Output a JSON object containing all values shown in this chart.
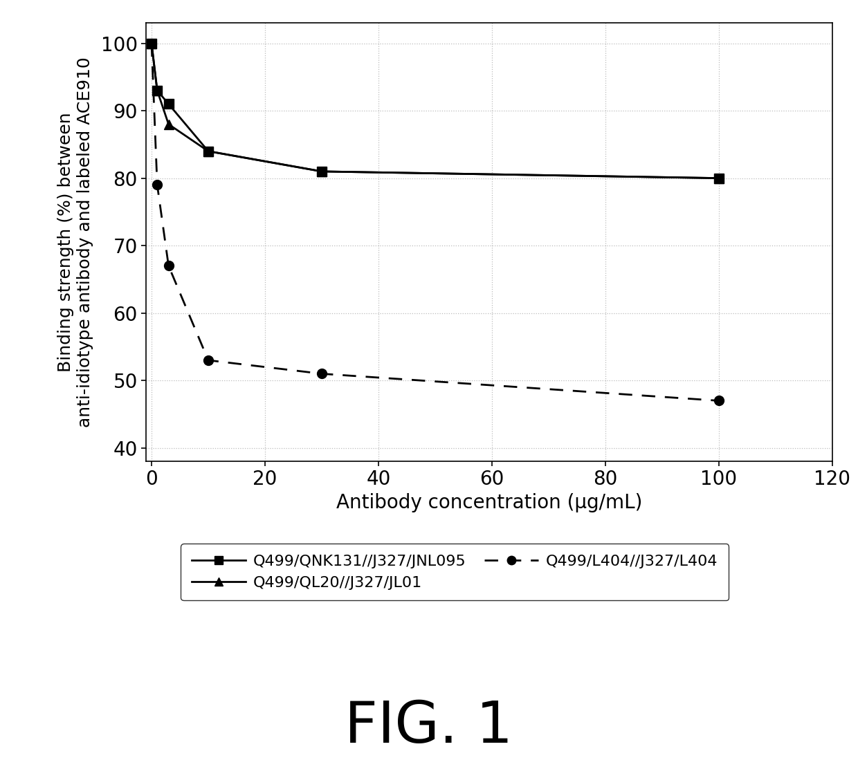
{
  "series": [
    {
      "label": "Q499/QNK131//J327/JNL095",
      "x": [
        0,
        1,
        3,
        10,
        30,
        100
      ],
      "y": [
        100,
        93,
        91,
        84,
        81,
        80
      ],
      "color": "#000000",
      "linestyle": "solid",
      "marker": "s"
    },
    {
      "label": "Q499/QL20//J327/JL01",
      "x": [
        0,
        1,
        3,
        10,
        30,
        100
      ],
      "y": [
        100,
        93,
        88,
        84,
        81,
        80
      ],
      "color": "#000000",
      "linestyle": "solid",
      "marker": "^"
    },
    {
      "label": "Q499/L404//J327/L404",
      "x": [
        0,
        1,
        3,
        10,
        30,
        100
      ],
      "y": [
        100,
        79,
        67,
        53,
        51,
        47
      ],
      "color": "#000000",
      "linestyle": "dashed",
      "marker": "o"
    }
  ],
  "xlabel": "Antibody concentration (μg/mL)",
  "ylabel_line1": "Binding strength (%) between",
  "ylabel_line2": "anti-idiotype antibody and labeled ACE910",
  "xlim": [
    -1,
    120
  ],
  "ylim": [
    38,
    103
  ],
  "xticks": [
    0,
    20,
    40,
    60,
    80,
    100,
    120
  ],
  "yticks": [
    40,
    50,
    60,
    70,
    80,
    90,
    100
  ],
  "grid_color": "#bbbbbb",
  "background_color": "#ffffff",
  "fig_title": "FIG. 1",
  "title_fontsize": 60,
  "axis_label_fontsize": 20,
  "tick_fontsize": 20,
  "legend_fontsize": 16,
  "ylabel_fontsize": 18
}
